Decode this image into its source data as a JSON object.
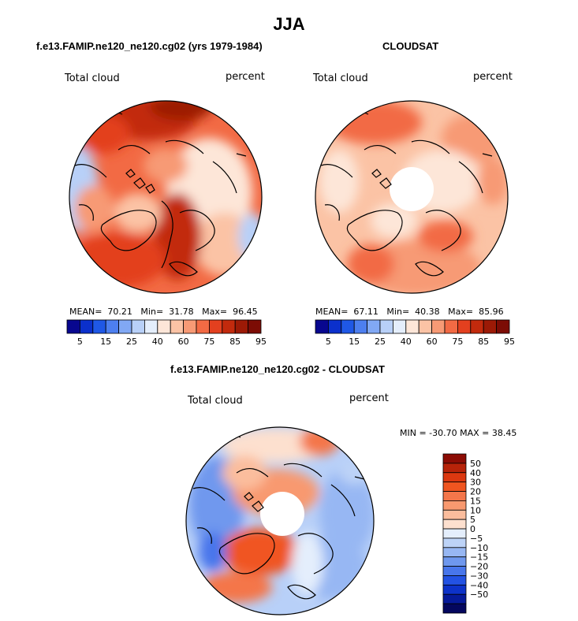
{
  "main_title": "JJA",
  "panels": [
    {
      "title": "f.e13.FAMIP.ne120_ne120.cg02 (yrs 1979-1984)",
      "variable": "Total cloud",
      "units": "percent",
      "stats": {
        "mean_label": "MEAN=",
        "mean": "70.21",
        "min_label": "Min=",
        "min": "31.78",
        "max_label": "Max=",
        "max": "96.45"
      }
    },
    {
      "title": "CLOUDSAT",
      "variable": "Total cloud",
      "units": "percent",
      "stats": {
        "mean_label": "MEAN=",
        "mean": "67.11",
        "min_label": "Min=",
        "min": "40.38",
        "max_label": "Max=",
        "max": "85.96"
      }
    },
    {
      "title": "f.e13.FAMIP.ne120_ne120.cg02 - CLOUDSAT",
      "variable": "Total cloud",
      "units": "percent",
      "minmax_text": "MIN = -30.70 MAX =  38.45"
    }
  ],
  "colorbar_abs": {
    "colors": [
      "#08078f",
      "#0b30cc",
      "#1f58e6",
      "#4d7fef",
      "#81a8f4",
      "#b8d0f8",
      "#e4eefc",
      "#fde6d8",
      "#fbc3a5",
      "#f79a75",
      "#f26a44",
      "#e3401f",
      "#c22a0d",
      "#9c1a06",
      "#7c0c05"
    ],
    "labels": [
      "5",
      "15",
      "25",
      "40",
      "60",
      "75",
      "85",
      "95"
    ]
  },
  "colorbar_diff": {
    "colors_top_to_bottom": [
      "#8c0c04",
      "#b72309",
      "#dc3810",
      "#f05520",
      "#f4764a",
      "#f8996f",
      "#fbbd9d",
      "#fde0cf",
      "#e4eefc",
      "#bdd3f7",
      "#97b7f3",
      "#6f98ee",
      "#4876eb",
      "#2352e3",
      "#0d32c9",
      "#061a9a",
      "#04075e"
    ],
    "labels": [
      "50",
      "40",
      "30",
      "20",
      "15",
      "10",
      "5",
      "0",
      "−5",
      "−10",
      "−15",
      "−20",
      "−30",
      "−40",
      "−50"
    ]
  },
  "chart_data": [
    {
      "type": "heatmap",
      "title": "f.e13.FAMIP.ne120_ne120.cg02 (yrs 1979-1984)",
      "season": "JJA",
      "variable": "Total cloud",
      "units": "percent",
      "projection": "north polar stereographic",
      "mean": 70.21,
      "min": 31.78,
      "max": 96.45,
      "contour_levels": [
        5,
        10,
        15,
        20,
        25,
        30,
        40,
        50,
        60,
        70,
        75,
        80,
        85,
        90,
        95
      ]
    },
    {
      "type": "heatmap",
      "title": "CLOUDSAT",
      "season": "JJA",
      "variable": "Total cloud",
      "units": "percent",
      "projection": "north polar stereographic",
      "mean": 67.11,
      "min": 40.38,
      "max": 85.96,
      "contour_levels": [
        5,
        10,
        15,
        20,
        25,
        30,
        40,
        50,
        60,
        70,
        75,
        80,
        85,
        90,
        95
      ]
    },
    {
      "type": "heatmap",
      "title": "f.e13.FAMIP.ne120_ne120.cg02 - CLOUDSAT",
      "season": "JJA",
      "variable": "Total cloud",
      "units": "percent",
      "projection": "north polar stereographic",
      "min": -30.7,
      "max": 38.45,
      "contour_levels": [
        -50,
        -40,
        -30,
        -20,
        -15,
        -10,
        -5,
        0,
        5,
        10,
        15,
        20,
        30,
        40,
        50
      ]
    }
  ]
}
